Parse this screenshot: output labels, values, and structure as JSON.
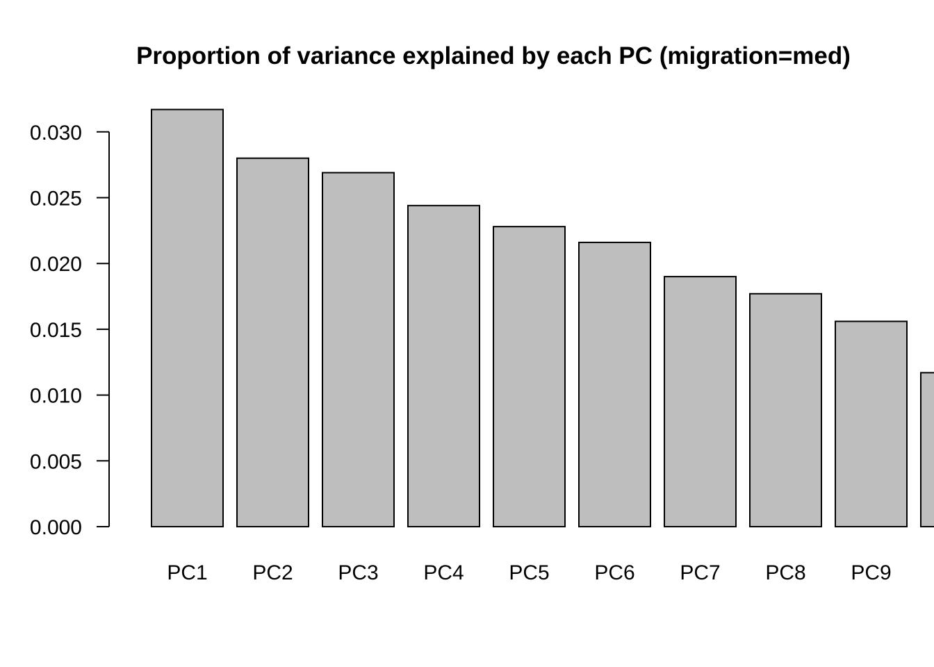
{
  "chart_data": {
    "type": "bar",
    "title": "Proportion of variance explained by each PC (migration=med)",
    "xlabel": "",
    "ylabel": "",
    "categories": [
      "PC1",
      "PC2",
      "PC3",
      "PC4",
      "PC5",
      "PC6",
      "PC7",
      "PC8",
      "PC9",
      ""
    ],
    "values": [
      0.0317,
      0.028,
      0.0269,
      0.0244,
      0.0228,
      0.0216,
      0.019,
      0.0177,
      0.0156,
      0.0117
    ],
    "ylim": [
      0,
      0.03
    ],
    "yticks": [
      "0.000",
      "0.005",
      "0.010",
      "0.015",
      "0.020",
      "0.025",
      "0.030"
    ],
    "bar_color": "#bebebe",
    "grid": false,
    "legend": "none"
  }
}
